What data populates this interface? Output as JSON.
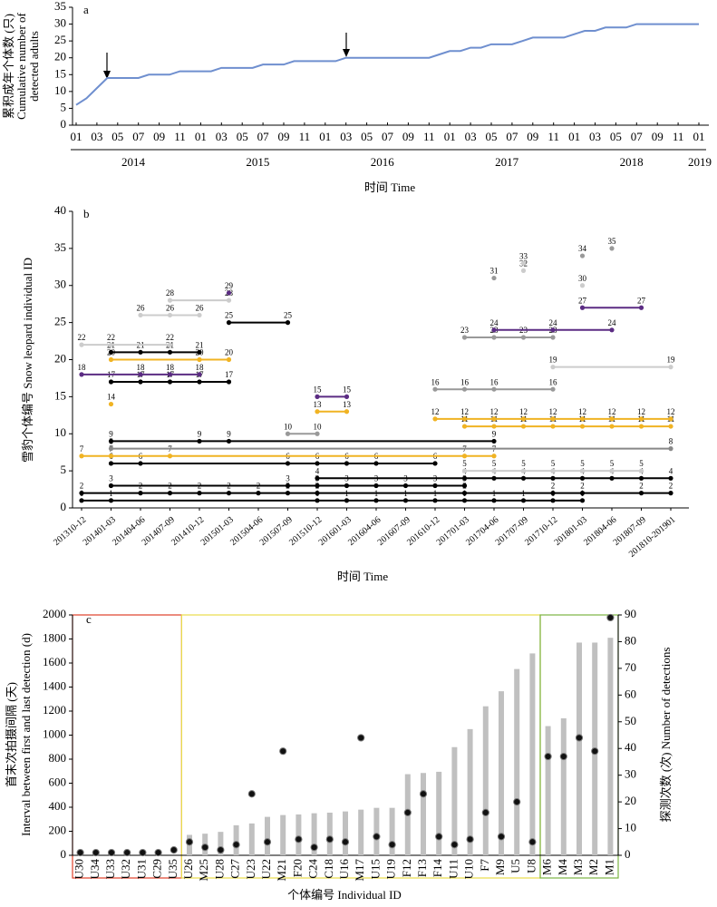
{
  "chart_data": [
    {
      "type": "line",
      "panel": "a",
      "ylabel": [
        "累积成年个体数 (只)",
        "Cumulative number of",
        "detected adults"
      ],
      "xlabel": "时间 Time",
      "years": [
        "2014",
        "2015",
        "2016",
        "2017",
        "2018",
        "2019"
      ],
      "month_ticks": [
        "01",
        "03",
        "05",
        "07",
        "09",
        "11"
      ],
      "values": [
        6,
        8,
        11,
        14,
        14,
        14,
        14,
        15,
        15,
        15,
        16,
        16,
        16,
        16,
        17,
        17,
        17,
        17,
        18,
        18,
        18,
        19,
        19,
        19,
        19,
        19,
        20,
        20,
        20,
        20,
        20,
        20,
        20,
        20,
        20,
        21,
        22,
        22,
        23,
        23,
        24,
        24,
        24,
        25,
        26,
        26,
        26,
        26,
        27,
        28,
        28,
        29,
        29,
        29,
        30,
        30,
        30,
        30,
        30,
        30,
        30
      ],
      "color": "#6f8fcf",
      "ylim": [
        0,
        35
      ],
      "yticks": [
        0,
        5,
        10,
        15,
        20,
        25,
        30,
        35
      ]
    },
    {
      "type": "scatter",
      "panel": "b",
      "ylabel": "雪豹个体编号 Snow leopard individual ID",
      "xlabel": "时间 Time",
      "categories": [
        "201310-12",
        "201401-03",
        "201404-06",
        "201407-09",
        "201410-12",
        "201501-03",
        "201504-06",
        "201507-09",
        "201510-12",
        "201601-03",
        "201604-06",
        "201607-09",
        "201610-12",
        "201701-03",
        "201704-06",
        "201707-09",
        "201710-12",
        "201801-03",
        "201804-06",
        "201807-09",
        "201810-201901"
      ],
      "ylim": [
        0,
        40
      ],
      "yticks": [
        0,
        5,
        10,
        15,
        20,
        25,
        30,
        35,
        40
      ],
      "individuals": [
        {
          "id": 1,
          "color": "#000000",
          "detections": [
            0,
            1,
            8,
            9,
            10,
            11,
            12,
            13,
            14,
            15,
            16,
            17
          ]
        },
        {
          "id": 2,
          "color": "#000000",
          "detections": [
            0,
            2,
            3,
            4,
            5,
            6,
            7,
            8,
            13,
            16,
            17,
            19,
            20
          ]
        },
        {
          "id": 3,
          "color": "#000000",
          "detections": [
            1,
            7,
            8,
            9,
            10,
            11,
            12,
            13
          ]
        },
        {
          "id": 4,
          "color": "#000000",
          "detections": [
            8,
            13,
            14,
            15,
            16,
            17,
            18,
            19,
            20
          ]
        },
        {
          "id": 5,
          "color": "#cccccc",
          "detections": [
            13,
            14,
            15,
            16,
            17,
            18,
            19
          ]
        },
        {
          "id": 6,
          "color": "#000000",
          "detections": [
            1,
            2,
            7,
            8,
            9,
            10,
            12
          ]
        },
        {
          "id": 7,
          "color": "#f0b323",
          "detections": [
            0,
            1,
            3,
            13,
            14
          ]
        },
        {
          "id": 8,
          "color": "#888888",
          "detections": [
            1,
            20
          ]
        },
        {
          "id": 9,
          "color": "#000000",
          "detections": [
            1,
            4,
            5,
            14
          ]
        },
        {
          "id": 10,
          "color": "#999999",
          "detections": [
            7,
            8
          ]
        },
        {
          "id": 11,
          "color": "#f0b323",
          "detections": [
            13,
            14,
            15,
            16,
            17,
            18,
            19,
            20
          ]
        },
        {
          "id": 12,
          "color": "#f0b323",
          "detections": [
            12,
            13,
            14,
            15,
            16,
            17,
            18,
            19,
            20
          ]
        },
        {
          "id": 13,
          "color": "#f0b323",
          "detections": [
            8,
            9
          ]
        },
        {
          "id": 14,
          "color": "#f0b323",
          "detections": [
            1
          ]
        },
        {
          "id": 15,
          "color": "#5b2c83",
          "detections": [
            8,
            9
          ]
        },
        {
          "id": 16,
          "color": "#999999",
          "detections": [
            12,
            13,
            14,
            16
          ]
        },
        {
          "id": 17,
          "color": "#000000",
          "detections": [
            1,
            2,
            3,
            4,
            5
          ]
        },
        {
          "id": 18,
          "color": "#5b2c83",
          "detections": [
            0,
            2,
            3,
            4
          ]
        },
        {
          "id": 19,
          "color": "#cccccc",
          "detections": [
            16,
            20
          ]
        },
        {
          "id": 20,
          "color": "#f0b323",
          "detections": [
            1,
            4,
            5
          ]
        },
        {
          "id": 21,
          "color": "#000000",
          "detections": [
            1,
            2,
            3,
            4
          ]
        },
        {
          "id": 22,
          "color": "#cccccc",
          "detections": [
            0,
            1,
            3
          ]
        },
        {
          "id": 23,
          "color": "#999999",
          "detections": [
            13,
            14,
            15,
            16
          ]
        },
        {
          "id": 24,
          "color": "#5b2c83",
          "detections": [
            14,
            16,
            18
          ]
        },
        {
          "id": 25,
          "color": "#000000",
          "detections": [
            5,
            7
          ]
        },
        {
          "id": 26,
          "color": "#cccccc",
          "detections": [
            2,
            3,
            4
          ]
        },
        {
          "id": 27,
          "color": "#5b2c83",
          "detections": [
            17,
            19
          ]
        },
        {
          "id": 28,
          "color": "#cccccc",
          "detections": [
            3,
            5
          ]
        },
        {
          "id": 29,
          "color": "#5b2c83",
          "detections": [
            5
          ]
        },
        {
          "id": 30,
          "color": "#cccccc",
          "detections": [
            17
          ]
        },
        {
          "id": 31,
          "color": "#999999",
          "detections": [
            14
          ]
        },
        {
          "id": 32,
          "color": "#cccccc",
          "detections": [
            15
          ]
        },
        {
          "id": 33,
          "color": "#cccccc",
          "detections": [
            15
          ]
        },
        {
          "id": 34,
          "color": "#999999",
          "detections": [
            17
          ]
        },
        {
          "id": 35,
          "color": "#999999",
          "detections": [
            18
          ]
        }
      ]
    },
    {
      "type": "bar",
      "panel": "c",
      "ylabel": [
        "首末次拍摄间隔 (天)",
        "Interval between first and last detection (d)"
      ],
      "y2label": "探测次数 (次) Number of detections",
      "xlabel": "个体编号 Individual ID",
      "categories": [
        "U30",
        "U34",
        "U33",
        "U32",
        "U31",
        "C29",
        "U35",
        "U26",
        "M25",
        "U28",
        "C27",
        "U23",
        "U22",
        "M21",
        "F20",
        "C24",
        "C18",
        "U16",
        "M17",
        "U15",
        "U19",
        "F12",
        "F13",
        "F14",
        "U11",
        "U10",
        "F7",
        "M9",
        "U5",
        "U8",
        "M6",
        "M4",
        "M3",
        "M2",
        "M1"
      ],
      "ylim": [
        0,
        2000
      ],
      "yticks": [
        0,
        200,
        400,
        600,
        800,
        1000,
        1200,
        1400,
        1600,
        1800,
        2000
      ],
      "y2lim": [
        0,
        90
      ],
      "y2ticks": [
        0,
        10,
        20,
        30,
        40,
        50,
        60,
        70,
        80,
        90
      ],
      "series": [
        {
          "color": "#c0c0c0",
          "values": [
            0,
            0,
            0,
            0,
            0,
            0,
            0,
            170,
            180,
            195,
            250,
            265,
            320,
            335,
            340,
            350,
            355,
            365,
            380,
            395,
            395,
            675,
            685,
            695,
            900,
            1050,
            1240,
            1365,
            1550,
            1680,
            1075,
            1140,
            1770,
            1770,
            1810
          ]
        },
        {
          "color": "#111111",
          "axis": "y2",
          "values": [
            1,
            1,
            1,
            1,
            1,
            1,
            2,
            5,
            3,
            2,
            4,
            23,
            5,
            39,
            6,
            3,
            6,
            5,
            44,
            7,
            4,
            16,
            23,
            7,
            4,
            6,
            16,
            7,
            20,
            5,
            37,
            37,
            44,
            39,
            89
          ]
        }
      ]
    }
  ]
}
